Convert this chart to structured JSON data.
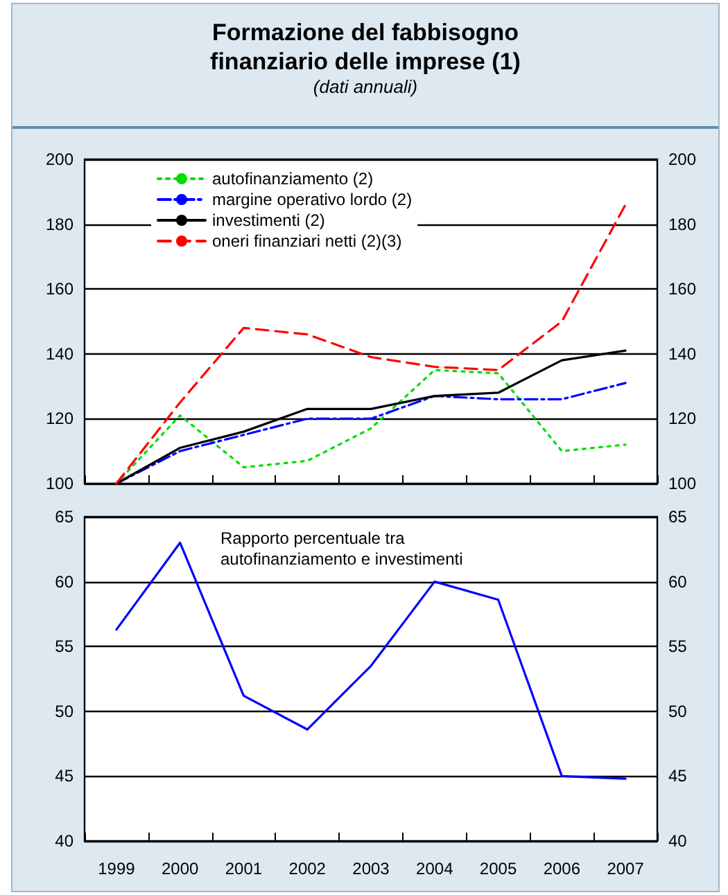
{
  "chart_data": [
    {
      "type": "line",
      "title": "Formazione del fabbisogno finanziario delle imprese (1)",
      "subtitle": "(dati annuali)",
      "categories": [
        "1999",
        "2000",
        "2001",
        "2002",
        "2003",
        "2004",
        "2005",
        "2006",
        "2007"
      ],
      "series": [
        {
          "name": "autofinanziamento (2)",
          "color": "#00dd00",
          "line_style": "dotted",
          "values": [
            100,
            121,
            105,
            107,
            117,
            135,
            134,
            110,
            112
          ]
        },
        {
          "name": "margine operativo lordo (2)",
          "color": "#0000ff",
          "line_style": "dashdot",
          "values": [
            100,
            110,
            115,
            120,
            120,
            127,
            126,
            126,
            131
          ]
        },
        {
          "name": "investimenti (2)",
          "color": "#000000",
          "line_style": "solid",
          "values": [
            100,
            111,
            116,
            123,
            123,
            127,
            128,
            138,
            141
          ]
        },
        {
          "name": "oneri finanziari netti (2)(3)",
          "color": "#ff0000",
          "line_style": "dashed",
          "values": [
            100,
            125,
            148,
            146,
            139,
            136,
            135,
            150,
            186
          ]
        }
      ],
      "ylim": [
        100,
        200
      ],
      "yticks": [
        100,
        120,
        140,
        160,
        180,
        200
      ],
      "y2lim": [
        100,
        200
      ],
      "y2ticks": [
        100,
        120,
        140,
        160,
        180,
        200
      ],
      "grid": "y",
      "legend": "top left",
      "marker": "none",
      "tick_labels": "y"
    },
    {
      "type": "line",
      "annotations": [
        "Rapporto percentuale tra\nautofinanziamento e investimenti"
      ],
      "categories": [
        "1999",
        "2000",
        "2001",
        "2002",
        "2003",
        "2004",
        "2005",
        "2006",
        "2007"
      ],
      "series": [
        {
          "color": "#0000ff",
          "line_style": "solid",
          "values": [
            56.3,
            63,
            51.2,
            48.6,
            53.5,
            60,
            58.6,
            45,
            44.8
          ]
        }
      ],
      "ylim": [
        40,
        65
      ],
      "yticks": [
        40,
        45,
        50,
        55,
        60,
        65
      ],
      "y2lim": [
        40,
        65
      ],
      "y2ticks": [
        40,
        45,
        50,
        55,
        60,
        65
      ],
      "grid": "y",
      "legend": false,
      "marker": "none"
    }
  ]
}
